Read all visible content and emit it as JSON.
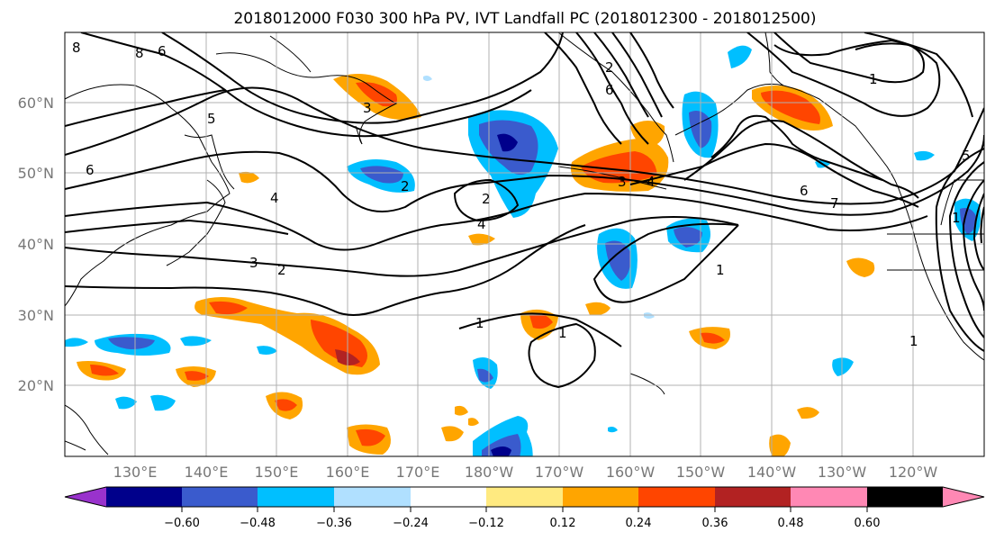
{
  "title": "2018012000 F030 300 hPa PV, IVT Landfall PC (2018012300 - 2018012500)",
  "lat_labels": [
    "60°N",
    "50°N",
    "40°N",
    "30°N",
    "20°N"
  ],
  "lon_labels": [
    "130°E",
    "140°E",
    "150°E",
    "160°E",
    "170°E",
    "180°W",
    "170°W",
    "160°W",
    "150°W",
    "140°W",
    "130°W",
    "120°W"
  ],
  "colorbar": {
    "colors": [
      "#9932cc",
      "#00008b",
      "#3a5bcd",
      "#00bfff",
      "#b0e0ff",
      "#ffffff",
      "#ffea80",
      "#ffa500",
      "#ff4500",
      "#b22222",
      "#ff88b4"
    ],
    "tick_labels": [
      "−0.60",
      "−0.48",
      "−0.36",
      "−0.24",
      "−0.12",
      "0.12",
      "0.24",
      "0.36",
      "0.48",
      "0.60"
    ]
  },
  "contour_labels": [
    "8",
    "6",
    "6",
    "5",
    "2",
    "4",
    "2",
    "4",
    "3",
    "2",
    "1",
    "1",
    "1",
    "3",
    "4",
    "3",
    "2",
    "8",
    "6",
    "7",
    "6",
    "1",
    "5",
    "1",
    "1"
  ]
}
